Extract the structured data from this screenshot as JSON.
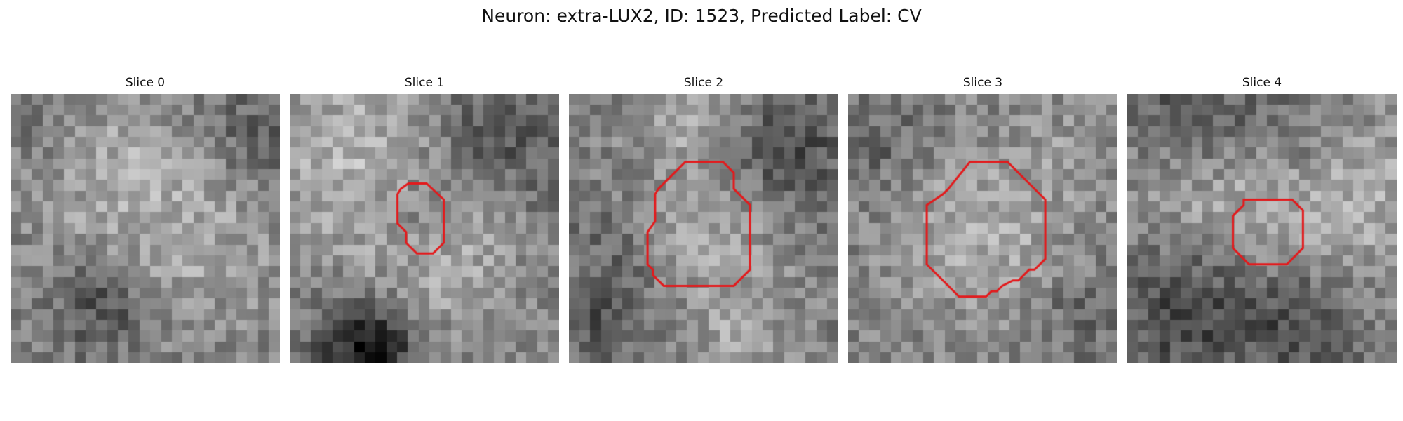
{
  "figure": {
    "title": "Neuron: extra-LUX2, ID: 1523, Predicted Label: CV"
  },
  "grid_size": 25,
  "contour_color": "#e31a1c",
  "panels": [
    {
      "title": "Slice 0",
      "has_contour": false,
      "contour": [],
      "blobs": [
        {
          "cx": 9,
          "cy": 6,
          "r": 6,
          "a": 35
        },
        {
          "cx": 17,
          "cy": 13,
          "r": 6,
          "a": 35
        },
        {
          "cx": 8,
          "cy": 19,
          "r": 3,
          "a": -55
        },
        {
          "cx": 22,
          "cy": 3,
          "r": 4,
          "a": -35
        },
        {
          "cx": 3,
          "cy": 2,
          "r": 3,
          "a": -25
        }
      ]
    },
    {
      "title": "Slice 1",
      "has_contour": true,
      "contour": [
        [
          10.3,
          8.8
        ],
        [
          11.0,
          8.3
        ],
        [
          12.7,
          8.3
        ],
        [
          14.3,
          9.8
        ],
        [
          14.3,
          13.8
        ],
        [
          13.3,
          14.8
        ],
        [
          11.8,
          14.8
        ],
        [
          10.8,
          13.8
        ],
        [
          10.8,
          12.8
        ],
        [
          10.0,
          12.0
        ],
        [
          10.0,
          9.3
        ]
      ],
      "blobs": [
        {
          "cx": 5,
          "cy": 5,
          "r": 6,
          "a": 50
        },
        {
          "cx": 11,
          "cy": 18,
          "r": 5,
          "a": 40
        },
        {
          "cx": 18,
          "cy": 12,
          "r": 4,
          "a": 30
        },
        {
          "cx": 7,
          "cy": 23,
          "r": 3.5,
          "a": -120
        },
        {
          "cx": 20,
          "cy": 4,
          "r": 5,
          "a": -45
        },
        {
          "cx": 12,
          "cy": 11,
          "r": 2.5,
          "a": -30
        }
      ]
    },
    {
      "title": "Slice 2",
      "has_contour": true,
      "contour": [
        [
          8.3,
          8.8
        ],
        [
          9.8,
          7.3
        ],
        [
          10.8,
          6.3
        ],
        [
          14.3,
          6.3
        ],
        [
          15.3,
          7.3
        ],
        [
          15.3,
          8.8
        ],
        [
          16.8,
          10.3
        ],
        [
          16.8,
          16.3
        ],
        [
          15.3,
          17.8
        ],
        [
          8.8,
          17.8
        ],
        [
          7.8,
          16.8
        ],
        [
          7.8,
          16.3
        ],
        [
          7.3,
          15.8
        ],
        [
          7.3,
          12.8
        ],
        [
          8.0,
          11.8
        ],
        [
          8.0,
          9.3
        ]
      ],
      "blobs": [
        {
          "cx": 12,
          "cy": 12,
          "r": 5.5,
          "a": 40
        },
        {
          "cx": 4,
          "cy": 14,
          "r": 4,
          "a": -30
        },
        {
          "cx": 20,
          "cy": 5,
          "r": 4,
          "a": -60
        },
        {
          "cx": 15,
          "cy": 22,
          "r": 3,
          "a": 30
        },
        {
          "cx": 11,
          "cy": 2,
          "r": 3,
          "a": 30
        },
        {
          "cx": 2,
          "cy": 21,
          "r": 3,
          "a": -40
        }
      ]
    },
    {
      "title": "Slice 3",
      "has_contour": true,
      "contour": [
        [
          9.3,
          8.8
        ],
        [
          11.3,
          6.3
        ],
        [
          14.8,
          6.3
        ],
        [
          18.3,
          9.8
        ],
        [
          18.3,
          15.3
        ],
        [
          17.3,
          16.3
        ],
        [
          16.8,
          16.3
        ],
        [
          15.8,
          17.3
        ],
        [
          15.3,
          17.3
        ],
        [
          14.3,
          17.8
        ],
        [
          13.8,
          18.3
        ],
        [
          13.3,
          18.3
        ],
        [
          12.8,
          18.8
        ],
        [
          10.3,
          18.8
        ],
        [
          7.3,
          15.8
        ],
        [
          7.3,
          10.3
        ],
        [
          8.8,
          9.3
        ]
      ],
      "blobs": [
        {
          "cx": 12.5,
          "cy": 12.5,
          "r": 6,
          "a": 45
        },
        {
          "cx": 3,
          "cy": 4,
          "r": 3,
          "a": -30
        },
        {
          "cx": 21,
          "cy": 20,
          "r": 3,
          "a": -30
        },
        {
          "cx": 20,
          "cy": 4,
          "r": 3,
          "a": 15
        }
      ]
    },
    {
      "title": "Slice 4",
      "has_contour": true,
      "contour": [
        [
          10.3,
          10.8
        ],
        [
          10.8,
          10.3
        ],
        [
          10.8,
          9.8
        ],
        [
          15.3,
          9.8
        ],
        [
          16.3,
          10.8
        ],
        [
          16.3,
          14.3
        ],
        [
          15.3,
          15.3
        ],
        [
          14.8,
          15.8
        ],
        [
          11.3,
          15.8
        ],
        [
          9.8,
          14.3
        ],
        [
          9.8,
          11.3
        ]
      ],
      "blobs": [
        {
          "cx": 7,
          "cy": 8,
          "r": 5,
          "a": 45
        },
        {
          "cx": 21,
          "cy": 10,
          "r": 6,
          "a": 45
        },
        {
          "cx": 13,
          "cy": 12.5,
          "r": 3,
          "a": 15
        },
        {
          "cx": 6,
          "cy": 2,
          "r": 4,
          "a": -60
        },
        {
          "cx": 5,
          "cy": 20,
          "r": 5,
          "a": -60
        },
        {
          "cx": 16,
          "cy": 21,
          "r": 4,
          "a": -50
        },
        {
          "cx": 15,
          "cy": 3,
          "r": 3,
          "a": -30
        }
      ]
    }
  ]
}
